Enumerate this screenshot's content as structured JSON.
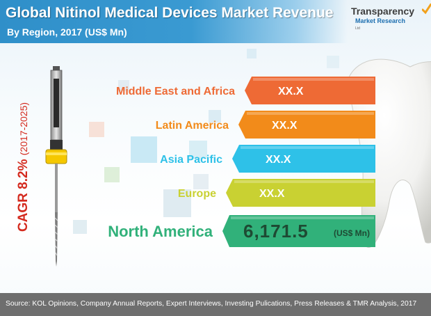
{
  "header": {
    "title": "Global Nitinol Medical Devices Market Revenue",
    "subtitle": "By Region, 2017 (US$ Mn)"
  },
  "logo": {
    "name": "Transparency",
    "line2": "Market Research",
    "tagline": "Ltd"
  },
  "colors": {
    "header": "#2f8fc9",
    "mea": "#ee6a35",
    "latin_america": "#f28b1a",
    "asia_pacific": "#2ec1e8",
    "europe": "#c9d132",
    "north_america": "#31b17a",
    "cagr": "#d42a1e",
    "footer": "#6e6e6e"
  },
  "cagr": {
    "label": "CAGR 8.2%",
    "period": "(2017-2025)"
  },
  "chart_data": {
    "type": "bar",
    "title": "Global Nitinol Medical Devices Market Revenue",
    "subtitle": "By Region, 2017 (US$ Mn)",
    "categories": [
      "Middle East and Africa",
      "Latin America",
      "Asia Pacific",
      "Europe",
      "North America"
    ],
    "value_labels": [
      "XX.X",
      "XX.X",
      "XX.X",
      "XX.X",
      "6,171.5"
    ],
    "values": [
      null,
      null,
      null,
      null,
      6171.5
    ],
    "unit": "(US$ Mn)"
  },
  "footer": {
    "source": "Source: KOL Opinions, Company Annual Reports, Expert Interviews, Investing Pulications, Press Releases  & TMR Analysis, 2017"
  }
}
